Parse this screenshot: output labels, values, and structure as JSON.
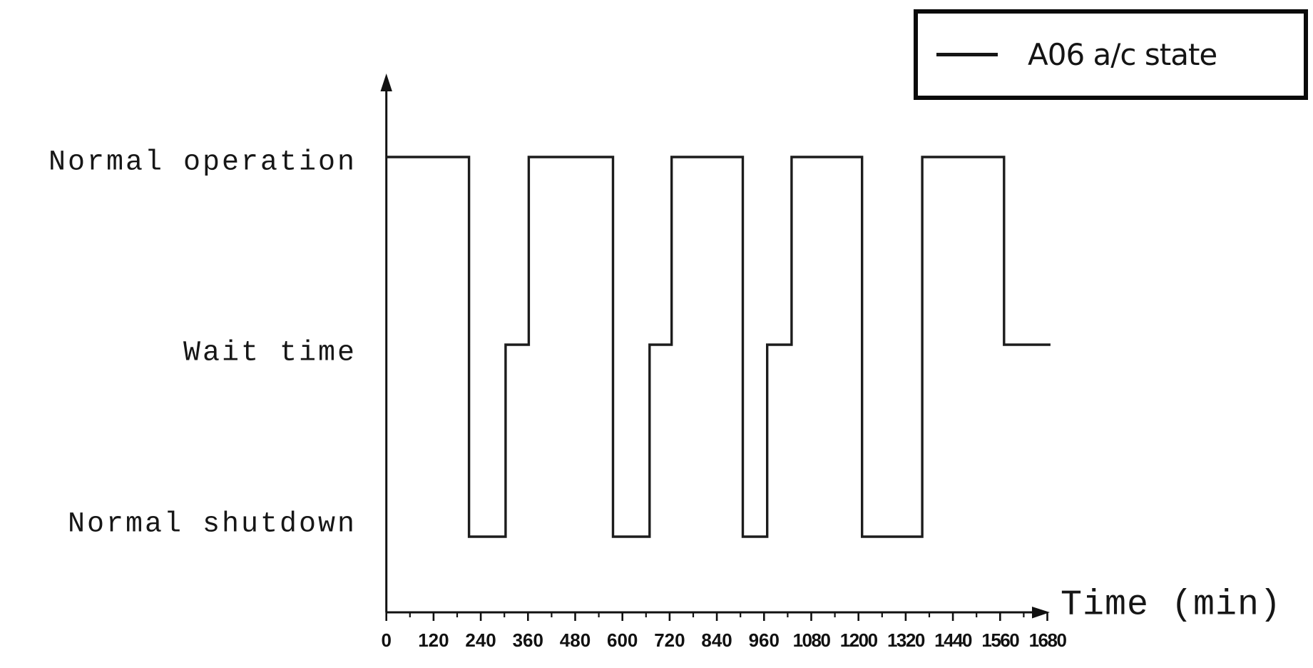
{
  "figure": {
    "background": "#ffffff",
    "line_color": "#1c1c1c",
    "axis_color": "#111111",
    "text_color": "#161616"
  },
  "legend": {
    "label": "A06 a/c state"
  },
  "chart_data": {
    "type": "step-line",
    "title": "",
    "xlabel": "Time (min)",
    "x_unit": "min",
    "xlim": [
      0,
      1680
    ],
    "x_major_ticks": [
      0,
      120,
      240,
      360,
      480,
      600,
      720,
      840,
      960,
      1080,
      1200,
      1320,
      1440,
      1560,
      1680
    ],
    "x_minor_tick_interval": 60,
    "grid": "off",
    "legend_position": "top-right",
    "y_categories": [
      {
        "code": 0,
        "label": "Normal shutdown"
      },
      {
        "code": 1,
        "label": "Wait time"
      },
      {
        "code": 2,
        "label": "Normal operation"
      }
    ],
    "series": [
      {
        "name": "A06 a/c state",
        "points": [
          {
            "t": 0,
            "state": "Normal operation"
          },
          {
            "t": 210,
            "state": "Normal shutdown"
          },
          {
            "t": 303,
            "state": "Wait time"
          },
          {
            "t": 362,
            "state": "Normal operation"
          },
          {
            "t": 576,
            "state": "Normal shutdown"
          },
          {
            "t": 669,
            "state": "Wait time"
          },
          {
            "t": 725,
            "state": "Normal operation"
          },
          {
            "t": 906,
            "state": "Normal shutdown"
          },
          {
            "t": 968,
            "state": "Wait time"
          },
          {
            "t": 1030,
            "state": "Normal operation"
          },
          {
            "t": 1209,
            "state": "Normal shutdown"
          },
          {
            "t": 1362,
            "state": "Normal operation"
          },
          {
            "t": 1570,
            "state": "Wait time"
          }
        ],
        "end_t": 1688
      }
    ]
  }
}
